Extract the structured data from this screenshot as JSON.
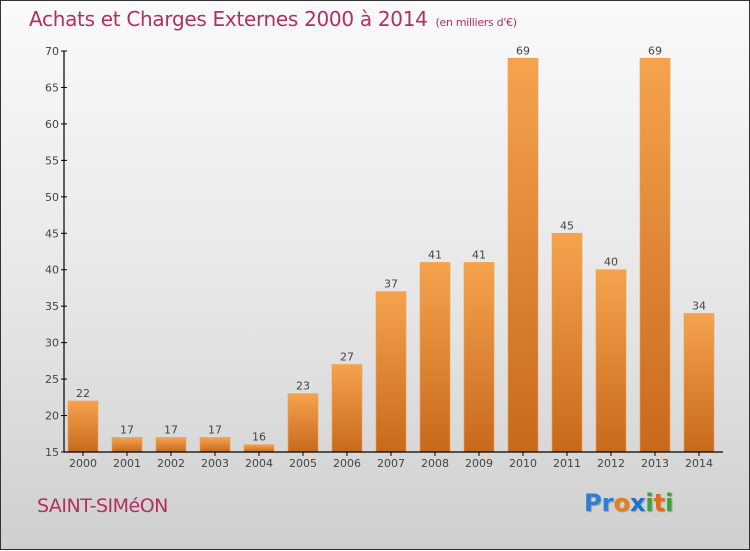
{
  "header": {
    "title": "Achats et Charges Externes 2000 à 2014",
    "unit": "(en milliers d'€)"
  },
  "footer": {
    "commune": "SAINT-SIMéON",
    "logo": {
      "letters": [
        {
          "ch": "P",
          "color": "#2a7fd4"
        },
        {
          "ch": "r",
          "color": "#2a7fd4"
        },
        {
          "ch": "o",
          "color": "#e8801a"
        },
        {
          "ch": "x",
          "color": "#1f6fd0"
        },
        {
          "ch": "i",
          "color": "#3aa33a"
        },
        {
          "ch": "t",
          "color": "#e86a1a"
        },
        {
          "ch": "i",
          "color": "#3aa33a"
        }
      ]
    }
  },
  "colors": {
    "bar_top": "#f5a34e",
    "bar_bottom": "#c8691c",
    "title": "#b03060"
  },
  "chart_data": {
    "type": "bar",
    "title": "Achats et Charges Externes 2000 à 2014 (en milliers d'€)",
    "xlabel": "",
    "ylabel": "",
    "categories": [
      "2000",
      "2001",
      "2002",
      "2003",
      "2004",
      "2005",
      "2006",
      "2007",
      "2008",
      "2009",
      "2010",
      "2011",
      "2012",
      "2013",
      "2014"
    ],
    "values": [
      22,
      17,
      17,
      17,
      16,
      23,
      27,
      37,
      41,
      41,
      69,
      45,
      40,
      69,
      34
    ],
    "ylim": [
      15,
      70
    ],
    "yticks": [
      15,
      20,
      25,
      30,
      35,
      40,
      45,
      50,
      55,
      60,
      65,
      70
    ],
    "grid": false,
    "legend": "none",
    "data_labels": true
  }
}
